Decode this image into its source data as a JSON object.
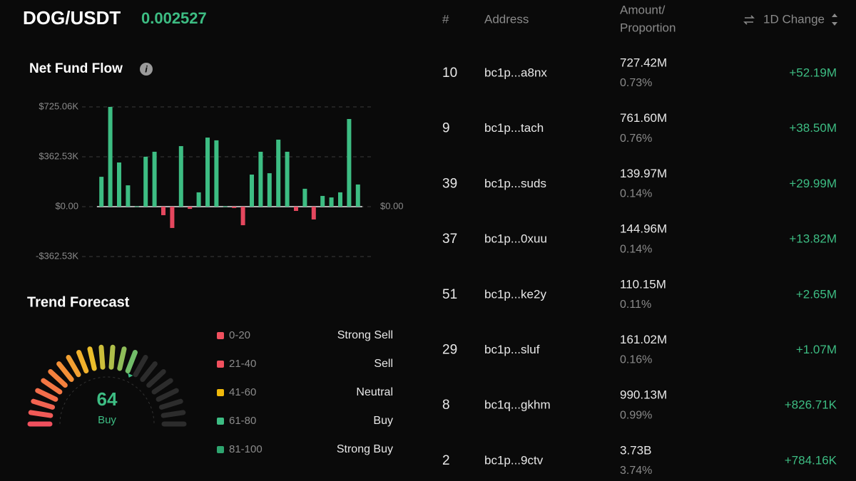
{
  "header": {
    "pair": "DOG/USDT",
    "price": "0.002527"
  },
  "chart_data": {
    "type": "bar",
    "title": "Net Fund Flow",
    "categories": [
      null,
      null,
      null,
      null,
      null,
      null,
      null,
      null,
      null,
      null,
      null,
      null,
      null,
      null,
      null,
      null,
      null,
      null,
      null,
      null,
      null,
      null,
      null,
      null,
      null,
      null,
      null,
      null,
      null,
      null
    ],
    "values": [
      217,
      725,
      321,
      155,
      3,
      363,
      399,
      -62,
      -155,
      440,
      -16,
      104,
      502,
      482,
      3,
      -10,
      -135,
      233,
      399,
      243,
      487,
      399,
      -31,
      130,
      -93,
      78,
      67,
      104,
      637,
      161
    ],
    "positive_color": "#3dbd83",
    "negative_color": "#e5475e",
    "ylim": [
      -362.53,
      725.06
    ],
    "yticks": [
      {
        "value": 725.06,
        "label": "$725.06K"
      },
      {
        "value": 362.53,
        "label": "$362.53K"
      },
      {
        "value": 0,
        "label": "$0.00"
      },
      {
        "value": -362.53,
        "label": "-$362.53K"
      }
    ],
    "grid": true
  },
  "trend_forecast": {
    "title": "Trend Forecast",
    "value": 64,
    "label": "Buy",
    "range": [
      0,
      100
    ],
    "legend": [
      {
        "range": "0-20",
        "label": "Strong Sell",
        "color": "#f0505e"
      },
      {
        "range": "21-40",
        "label": "Sell",
        "color": "#f0505e"
      },
      {
        "range": "41-60",
        "label": "Neutral",
        "color": "#f0b90b"
      },
      {
        "range": "61-80",
        "label": "Buy",
        "color": "#3dbd83"
      },
      {
        "range": "81-100",
        "label": "Strong Buy",
        "color": "#2ea56f"
      }
    ]
  },
  "table": {
    "columns": [
      "#",
      "Address",
      "Amount/",
      "Proportion",
      "1D Change"
    ],
    "rows": [
      [
        10,
        "bc1p...a8nx",
        "727.42M",
        "0.73%",
        "+52.19M"
      ],
      [
        9,
        "bc1p...tach",
        "761.60M",
        "0.76%",
        "+38.50M"
      ],
      [
        39,
        "bc1p...suds",
        "139.97M",
        "0.14%",
        "+29.99M"
      ],
      [
        37,
        "bc1p...0xuu",
        "144.96M",
        "0.14%",
        "+13.82M"
      ],
      [
        51,
        "bc1p...ke2y",
        "110.15M",
        "0.11%",
        "+2.65M"
      ],
      [
        29,
        "bc1p...sluf",
        "161.02M",
        "0.16%",
        "+1.07M"
      ],
      [
        8,
        "bc1q...gkhm",
        "990.13M",
        "0.99%",
        "+826.71K"
      ],
      [
        2,
        "bc1p...9ctv",
        "3.73B",
        "3.74%",
        "+784.16K"
      ]
    ]
  }
}
